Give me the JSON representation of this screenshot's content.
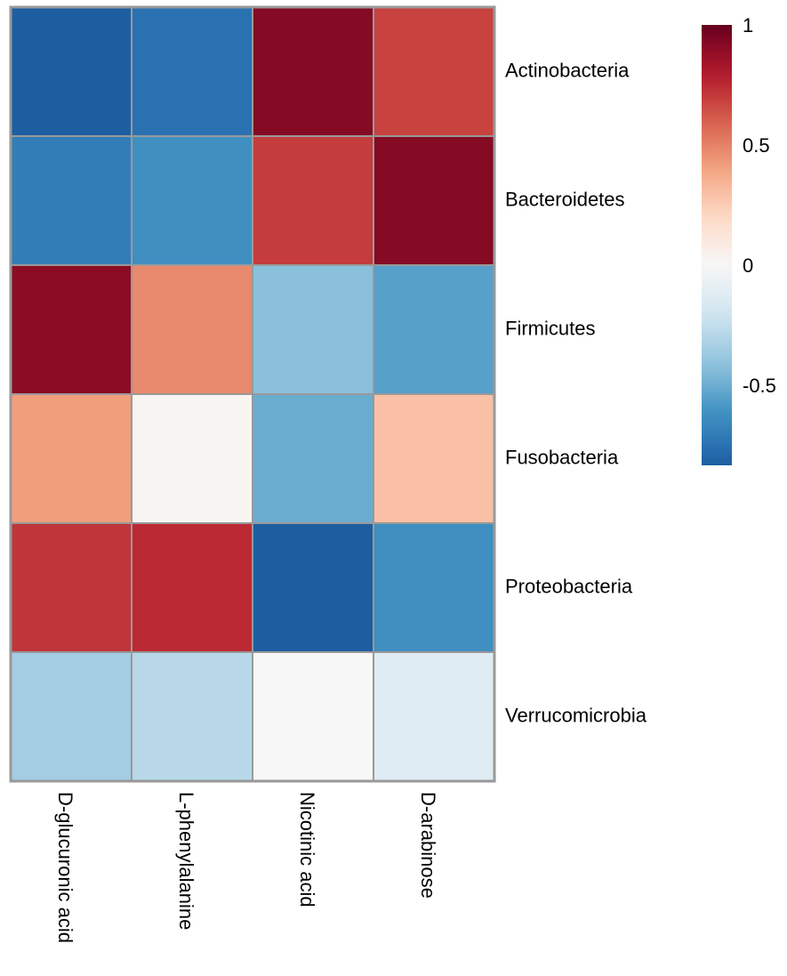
{
  "chart_data": {
    "type": "heatmap",
    "title": "",
    "xlabel": "",
    "ylabel": "",
    "columns": [
      "D-glucuronic acid",
      "L-phenylalanine",
      "Nicotinic acid",
      "D-arabinose"
    ],
    "rows": [
      "Actinobacteria",
      "Bacteroidetes",
      "Firmicutes",
      "Fusobacteria",
      "Proteobacteria",
      "Verrucomicrobia"
    ],
    "values": [
      [
        -0.83,
        -0.75,
        0.92,
        0.68
      ],
      [
        -0.7,
        -0.62,
        0.7,
        0.92
      ],
      [
        0.9,
        0.48,
        -0.42,
        -0.55
      ],
      [
        0.42,
        0.02,
        -0.5,
        0.3
      ],
      [
        0.72,
        0.75,
        -0.83,
        -0.62
      ],
      [
        -0.35,
        -0.28,
        0.0,
        -0.12
      ]
    ],
    "colorbar": {
      "ticks": [
        1,
        0.5,
        0,
        -0.5
      ],
      "tick_labels": [
        "1",
        "0.5",
        "0",
        "-0.5"
      ],
      "range": [
        -0.83,
        1
      ],
      "palette": [
        "#053061",
        "#2166ac",
        "#4393c3",
        "#92c5de",
        "#d1e5f0",
        "#f7f7f7",
        "#fddbc7",
        "#f4a582",
        "#d6604d",
        "#b2182b",
        "#67001f"
      ],
      "position": "right"
    },
    "grid": true,
    "cell_border_color": "#999999"
  }
}
